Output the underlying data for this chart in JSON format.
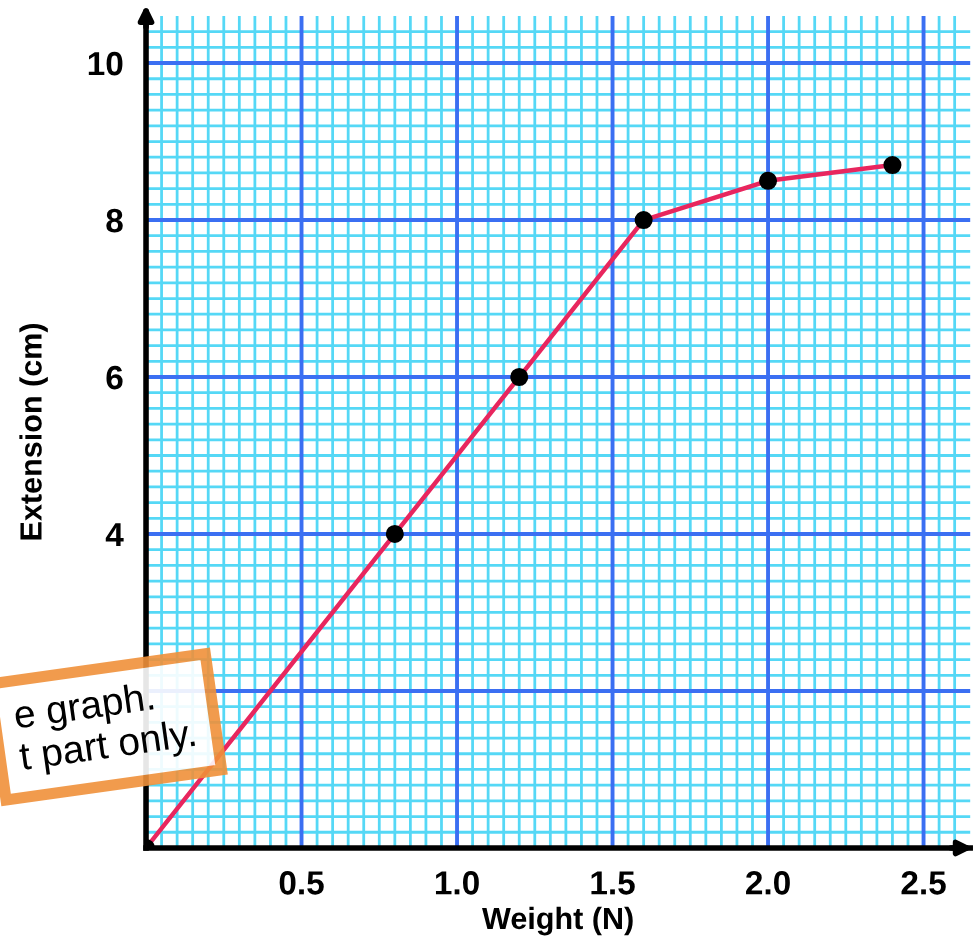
{
  "chart_data": {
    "type": "line",
    "xlabel": "Weight (N)",
    "ylabel": "Extension (cm)",
    "x": [
      0,
      0.8,
      1.2,
      1.6,
      2.0,
      2.4
    ],
    "series": [
      {
        "color": "#e8265e",
        "values": [
          0,
          4.0,
          6.0,
          8.0,
          8.5,
          8.7
        ]
      }
    ],
    "marker": "circle",
    "line_style": "solid",
    "xlim": [
      0,
      2.65
    ],
    "ylim": [
      0,
      10.6
    ],
    "xticks": [
      {
        "value": 0.05,
        "label": null
      },
      {
        "value": 0.1,
        "label": null
      },
      {
        "value": 0.15,
        "label": null
      },
      {
        "value": 0.2,
        "label": null
      },
      {
        "value": 0.25,
        "label": null
      },
      {
        "value": 0.3,
        "label": null
      },
      {
        "value": 0.35,
        "label": null
      },
      {
        "value": 0.4,
        "label": null
      },
      {
        "value": 0.45,
        "label": null
      },
      0.5,
      {
        "value": 0.55,
        "label": null
      },
      {
        "value": 0.6,
        "label": null
      },
      {
        "value": 0.65,
        "label": null
      },
      {
        "value": 0.7,
        "label": null
      },
      {
        "value": 0.75,
        "label": null
      },
      {
        "value": 0.8,
        "label": null
      },
      {
        "value": 0.85,
        "label": null
      },
      {
        "value": 0.9,
        "label": null
      },
      {
        "value": 0.95,
        "label": null
      },
      {
        "value": 1,
        "label": "1.0"
      },
      {
        "value": 1.05,
        "label": null
      },
      {
        "value": 1.1,
        "label": null
      },
      {
        "value": 1.15,
        "label": null
      },
      {
        "value": 1.2,
        "label": null
      },
      {
        "value": 1.25,
        "label": null
      },
      {
        "value": 1.3,
        "label": null
      },
      {
        "value": 1.35,
        "label": null
      },
      {
        "value": 1.4,
        "label": null
      },
      {
        "value": 1.45,
        "label": null
      },
      1.5,
      {
        "value": 1.55,
        "label": null
      },
      {
        "value": 1.6,
        "label": null
      },
      {
        "value": 1.65,
        "label": null
      },
      {
        "value": 1.7,
        "label": null
      },
      {
        "value": 1.75,
        "label": null
      },
      {
        "value": 1.8,
        "label": null
      },
      {
        "value": 1.85,
        "label": null
      },
      {
        "value": 1.9,
        "label": null
      },
      {
        "value": 1.95,
        "label": null
      },
      {
        "value": 2,
        "label": "2.0"
      },
      {
        "value": 2.05,
        "label": null
      },
      {
        "value": 2.1,
        "label": null
      },
      {
        "value": 2.15,
        "label": null
      },
      {
        "value": 2.2,
        "label": null
      },
      {
        "value": 2.25,
        "label": null
      },
      {
        "value": 2.3,
        "label": null
      },
      {
        "value": 2.35,
        "label": null
      },
      {
        "value": 2.4,
        "label": null
      },
      {
        "value": 2.45,
        "label": null
      },
      2.5,
      {
        "value": 2.55,
        "label": null
      },
      {
        "value": 2.6,
        "label": null
      }
    ],
    "yticks": [
      {
        "value": 0.2,
        "label": null
      },
      {
        "value": 0.4,
        "label": null
      },
      {
        "value": 0.6,
        "label": null
      },
      {
        "value": 0.8,
        "label": null
      },
      {
        "value": 1,
        "label": null
      },
      {
        "value": 1.2,
        "label": null
      },
      {
        "value": 1.4,
        "label": null
      },
      {
        "value": 1.6,
        "label": null
      },
      {
        "value": 1.8,
        "label": null
      },
      {
        "value": 2,
        "label": null
      },
      {
        "value": 2.2,
        "label": null
      },
      {
        "value": 2.4,
        "label": null
      },
      {
        "value": 2.6,
        "label": null
      },
      {
        "value": 2.8,
        "label": null
      },
      {
        "value": 3,
        "label": null
      },
      {
        "value": 3.2,
        "label": null
      },
      {
        "value": 3.4,
        "label": null
      },
      {
        "value": 3.6,
        "label": null
      },
      {
        "value": 3.8,
        "label": null
      },
      4,
      {
        "value": 4.2,
        "label": null
      },
      {
        "value": 4.4,
        "label": null
      },
      {
        "value": 4.6,
        "label": null
      },
      {
        "value": 4.8,
        "label": null
      },
      {
        "value": 5,
        "label": null
      },
      {
        "value": 5.2,
        "label": null
      },
      {
        "value": 5.4,
        "label": null
      },
      {
        "value": 5.6,
        "label": null
      },
      {
        "value": 5.8,
        "label": null
      },
      6,
      {
        "value": 6.2,
        "label": null
      },
      {
        "value": 6.4,
        "label": null
      },
      {
        "value": 6.6,
        "label": null
      },
      {
        "value": 6.8,
        "label": null
      },
      {
        "value": 7,
        "label": null
      },
      {
        "value": 7.2,
        "label": null
      },
      {
        "value": 7.4,
        "label": null
      },
      {
        "value": 7.6,
        "label": null
      },
      {
        "value": 7.8,
        "label": null
      },
      8,
      {
        "value": 8.2,
        "label": null
      },
      {
        "value": 8.4,
        "label": null
      },
      {
        "value": 8.6,
        "label": null
      },
      {
        "value": 8.8,
        "label": null
      },
      {
        "value": 9,
        "label": null
      },
      {
        "value": 9.2,
        "label": null
      },
      {
        "value": 9.4,
        "label": null
      },
      {
        "value": 9.6,
        "label": null
      },
      {
        "value": 9.8,
        "label": null
      },
      10,
      {
        "value": 10.2,
        "label": null
      },
      {
        "value": 10.4,
        "label": null
      }
    ],
    "grid": true,
    "annotations": [
      "e graph.\nt part only."
    ]
  }
}
